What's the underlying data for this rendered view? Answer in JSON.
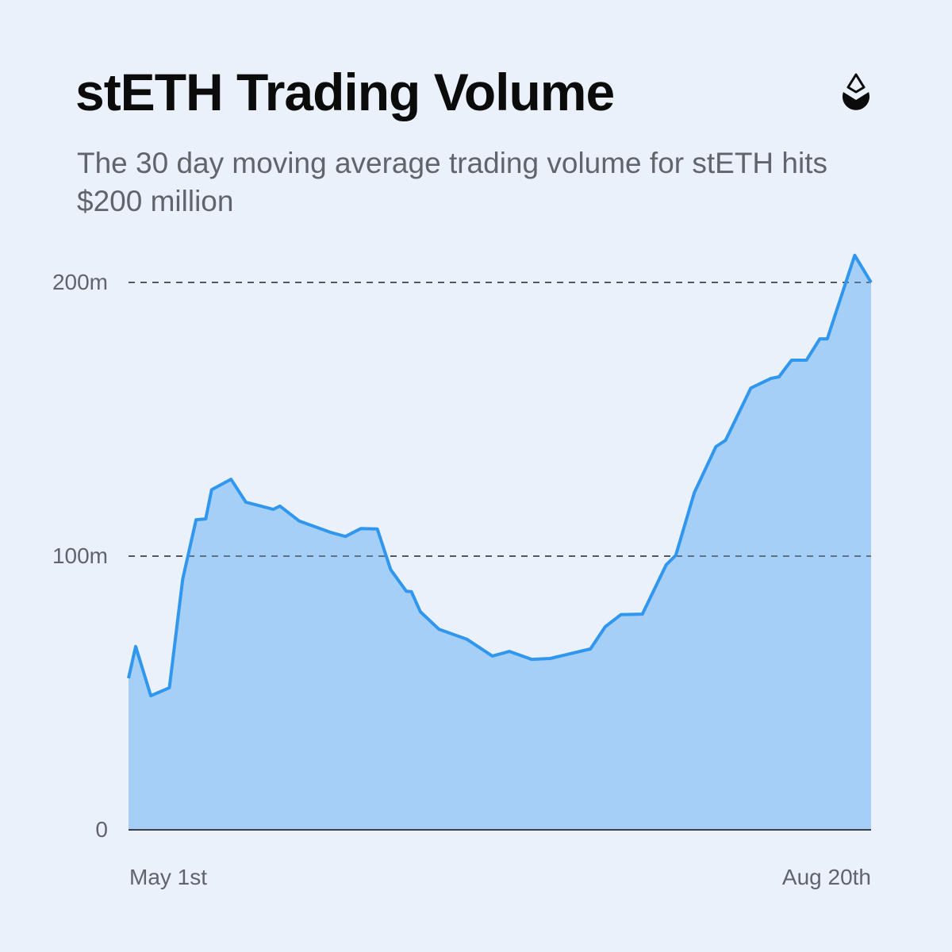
{
  "header": {
    "title": "stETH Trading Volume",
    "subtitle": "The 30 day moving average trading volume for stETH hits $200 million",
    "logo_icon": "lido-drop-icon"
  },
  "colors": {
    "background": "#eaf1fa",
    "line": "#3197ee",
    "fill": "#a5cff7",
    "gridline": "#3a3f46",
    "axis": "#3a3f46",
    "text_primary": "#0b0b0b",
    "text_secondary": "#60646b"
  },
  "axes": {
    "y_ticks": [
      "0",
      "100m",
      "200m"
    ],
    "x_ticks": [
      "May 1st",
      "Aug 20th"
    ]
  },
  "chart_data": {
    "type": "area",
    "title": "stETH Trading Volume",
    "subtitle": "The 30 day moving average trading volume for stETH hits $200 million",
    "xlabel": "",
    "ylabel": "",
    "x_range": [
      "May 1st",
      "Aug 20th"
    ],
    "ylim": [
      0,
      200
    ],
    "y_unit": "million USD",
    "grid": "horizontal dashed at 100m and 200m",
    "legend": "none",
    "series": [
      {
        "name": "stETH 30-day MA trading volume",
        "x": [
          0,
          0.96,
          3.0,
          5.5,
          7.3,
          9.1,
          10.4,
          11.2,
          13.8,
          15.8,
          19.5,
          20.4,
          23.0,
          27.2,
          29.2,
          31.3,
          33.5,
          35.3,
          37.4,
          38.1,
          39.3,
          41.8,
          45.6,
          49.0,
          51.3,
          54.3,
          56.8,
          59.4,
          62.2,
          64.2,
          66.3,
          69.2,
          72.4,
          73.7,
          76.2,
          79.1,
          80.4,
          83.8,
          86.5,
          87.6,
          89.3,
          91.3,
          93.1,
          94.1,
          97.8,
          100
        ],
        "x_note": "x expressed as percentage of the May 1st - Aug 20th range",
        "values": [
          55.4,
          67.0,
          49.0,
          51.9,
          91.6,
          113.3,
          113.6,
          124.3,
          128.1,
          119.7,
          117.1,
          118.3,
          112.8,
          108.7,
          107.2,
          110.1,
          109.9,
          95.1,
          87.2,
          87.0,
          79.7,
          73.3,
          69.6,
          63.5,
          65.2,
          62.3,
          62.6,
          64.3,
          66.1,
          74.2,
          78.6,
          78.8,
          96.8,
          100.3,
          123.2,
          140.0,
          142.3,
          161.4,
          164.9,
          165.5,
          171.6,
          171.6,
          179.4,
          179.4,
          209.9,
          200.0
        ]
      }
    ]
  }
}
